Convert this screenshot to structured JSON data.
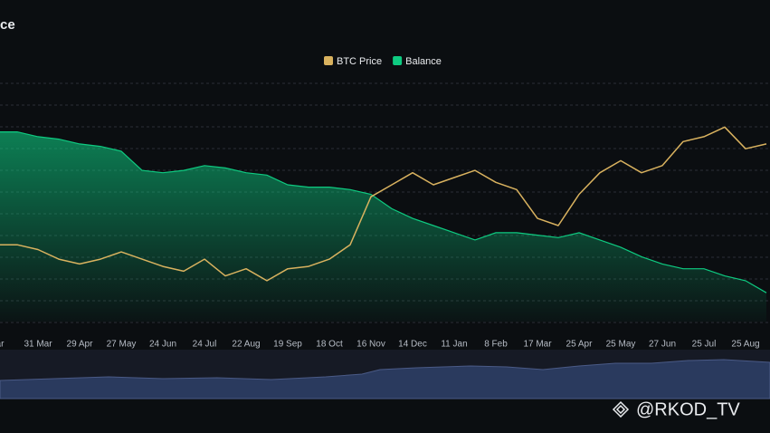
{
  "chart_data": {
    "type": "line-area",
    "title": "ce",
    "categories": [
      "ar",
      null,
      "31 Mar",
      null,
      "29 Apr",
      null,
      "27 May",
      null,
      "24 Jun",
      null,
      "24 Jul",
      null,
      "22 Aug",
      null,
      "19 Sep",
      null,
      "18 Oct",
      null,
      "16 Nov",
      null,
      "14 Dec",
      null,
      "11 Jan",
      null,
      "8 Feb",
      null,
      "17 Mar",
      null,
      "25 Apr",
      null,
      "25 May",
      null,
      "27 Jun",
      null,
      "25 Jul",
      null,
      "25 Aug",
      null
    ],
    "series": [
      {
        "name": "BTC Price",
        "color": "#d9b25f",
        "axis": "y2",
        "values": [
          32,
          32,
          30,
          26,
          24,
          26,
          29,
          26,
          23,
          21,
          26,
          19,
          22,
          17,
          22,
          23,
          26,
          32,
          52,
          57,
          62,
          57,
          60,
          63,
          58,
          55,
          43,
          40,
          53,
          62,
          67,
          62,
          65,
          75,
          77,
          81,
          72,
          74
        ]
      },
      {
        "name": "Balance",
        "color": "#0ecb81",
        "values": [
          79,
          79,
          77,
          76,
          74,
          73,
          71,
          63,
          62,
          63,
          65,
          64,
          62,
          61,
          57,
          56,
          56,
          55,
          53,
          47,
          43,
          40,
          37,
          34,
          37,
          37,
          36,
          35,
          37,
          34,
          31,
          27,
          24,
          22,
          22,
          19,
          17,
          12
        ]
      }
    ],
    "ylim": [
      0,
      100
    ],
    "y2lim": [
      0,
      100
    ],
    "grid": true
  },
  "watermark": "@RKOD_TV"
}
